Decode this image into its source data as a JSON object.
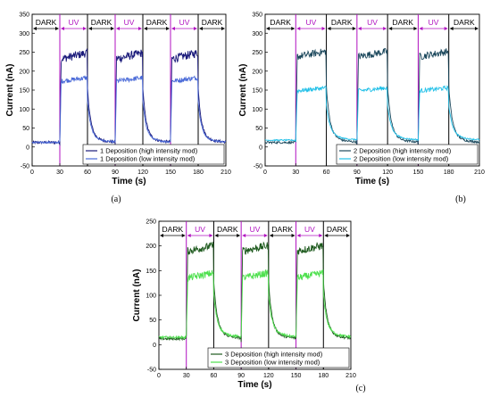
{
  "chart_data": [
    {
      "type": "line",
      "panel_label": "(a)",
      "xlabel": "Time (s)",
      "ylabel": "Current (nA)",
      "xlim": [
        0,
        210
      ],
      "ylim": [
        -50,
        350
      ],
      "xticks": [
        0,
        30,
        60,
        90,
        120,
        150,
        180,
        210
      ],
      "yticks": [
        -50,
        0,
        50,
        100,
        150,
        200,
        250,
        300,
        350
      ],
      "phases": [
        {
          "label": "DARK",
          "start": 0,
          "end": 30
        },
        {
          "label": "UV",
          "start": 30,
          "end": 60
        },
        {
          "label": "DARK",
          "start": 60,
          "end": 90
        },
        {
          "label": "UV",
          "start": 90,
          "end": 120
        },
        {
          "label": "DARK",
          "start": 120,
          "end": 150
        },
        {
          "label": "UV",
          "start": 150,
          "end": 180
        },
        {
          "label": "DARK",
          "start": 180,
          "end": 210
        }
      ],
      "legend_position": "bottom-right",
      "colors": {
        "dark_phase": "#000000",
        "uv_phase": "#b010c0"
      },
      "series": [
        {
          "name": "1 Deposition (high intensity mod)",
          "color": "#1a1a7a",
          "dark_level": 12,
          "on_level": 240,
          "noise": 14
        },
        {
          "name": "1 Deposition (low intensity mod)",
          "color": "#4a6ad8",
          "dark_level": 12,
          "on_level": 178,
          "noise": 8
        }
      ]
    },
    {
      "type": "line",
      "panel_label": "(b)",
      "xlabel": "Time (s)",
      "ylabel": "Current (nA)",
      "xlim": [
        0,
        210
      ],
      "ylim": [
        -50,
        350
      ],
      "xticks": [
        0,
        30,
        60,
        90,
        120,
        150,
        180,
        210
      ],
      "yticks": [
        -50,
        0,
        50,
        100,
        150,
        200,
        250,
        300,
        350
      ],
      "phases": [
        {
          "label": "DARK",
          "start": 0,
          "end": 30
        },
        {
          "label": "UV",
          "start": 30,
          "end": 60
        },
        {
          "label": "DARK",
          "start": 60,
          "end": 90
        },
        {
          "label": "UV",
          "start": 90,
          "end": 120
        },
        {
          "label": "DARK",
          "start": 120,
          "end": 150
        },
        {
          "label": "UV",
          "start": 150,
          "end": 180
        },
        {
          "label": "DARK",
          "start": 180,
          "end": 210
        }
      ],
      "legend_position": "bottom-right",
      "colors": {
        "dark_phase": "#000000",
        "uv_phase": "#b010c0"
      },
      "series": [
        {
          "name": "2 Deposition (high intensity mod)",
          "color": "#1e4a5e",
          "dark_level": 12,
          "on_level": 245,
          "noise": 12
        },
        {
          "name": "2 Deposition (low intensity mod)",
          "color": "#22c0e8",
          "dark_level": 18,
          "on_level": 152,
          "noise": 7
        }
      ]
    },
    {
      "type": "line",
      "panel_label": "(c)",
      "xlabel": "Time (s)",
      "ylabel": "Current (nA)",
      "xlim": [
        0,
        210
      ],
      "ylim": [
        -50,
        250
      ],
      "xticks": [
        0,
        30,
        60,
        90,
        120,
        150,
        180,
        210
      ],
      "yticks": [
        -50,
        0,
        50,
        100,
        150,
        200,
        250
      ],
      "phases": [
        {
          "label": "DARK",
          "start": 0,
          "end": 30
        },
        {
          "label": "UV",
          "start": 30,
          "end": 60
        },
        {
          "label": "DARK",
          "start": 60,
          "end": 90
        },
        {
          "label": "UV",
          "start": 90,
          "end": 120
        },
        {
          "label": "DARK",
          "start": 120,
          "end": 150
        },
        {
          "label": "UV",
          "start": 150,
          "end": 180
        },
        {
          "label": "DARK",
          "start": 180,
          "end": 210
        }
      ],
      "legend_position": "bottom-right",
      "colors": {
        "dark_phase": "#000000",
        "uv_phase": "#b010c0"
      },
      "series": [
        {
          "name": "3 Deposition (high intensity mod)",
          "color": "#1e5a1e",
          "dark_level": 12,
          "on_level": 195,
          "noise": 10
        },
        {
          "name": "3 Deposition (low intensity mod)",
          "color": "#4ee04e",
          "dark_level": 15,
          "on_level": 140,
          "noise": 9
        }
      ]
    }
  ]
}
